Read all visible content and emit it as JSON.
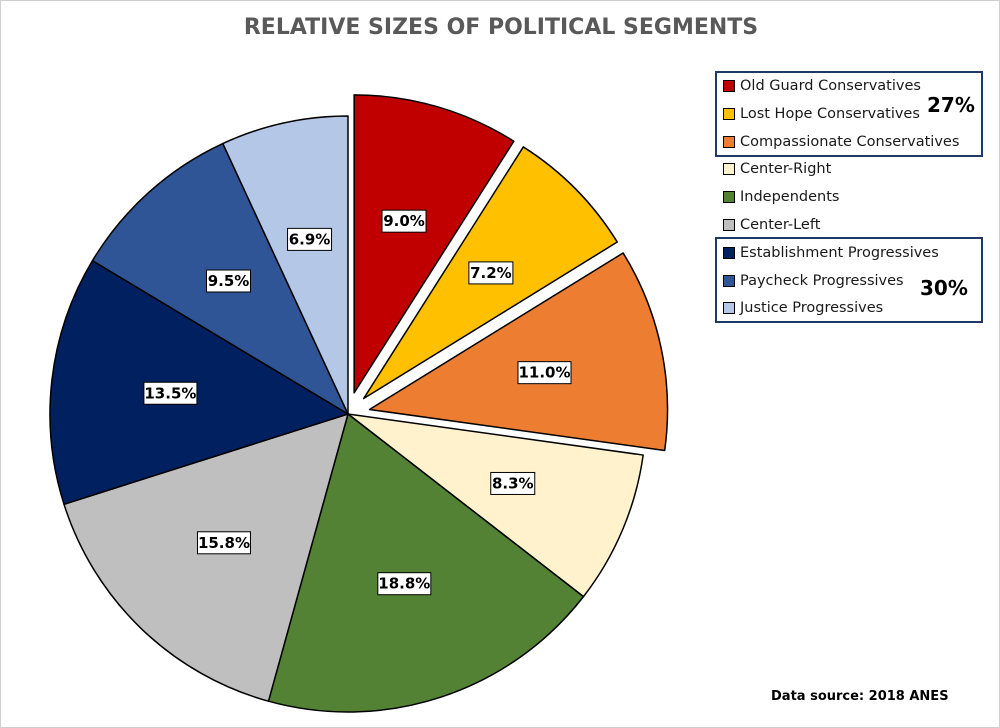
{
  "chart_data": {
    "type": "pie",
    "title": "RELATIVE SIZES OF POLITICAL SEGMENTS",
    "start_angle_deg": 0,
    "direction": "clockwise",
    "slices": [
      {
        "name": "Old Guard Conservatives",
        "value": 9.0,
        "label": "9.0%",
        "color": "#C00000",
        "exploded": true
      },
      {
        "name": "Lost Hope Conservatives",
        "value": 7.2,
        "label": "7.2%",
        "color": "#FFC000",
        "exploded": true
      },
      {
        "name": "Compassionate Conservatives",
        "value": 11.0,
        "label": "11.0%",
        "color": "#ED7D31",
        "exploded": true
      },
      {
        "name": "Center-Right",
        "value": 8.3,
        "label": "8.3%",
        "color": "#FFF2CC",
        "exploded": false
      },
      {
        "name": "Independents",
        "value": 18.8,
        "label": "18.8%",
        "color": "#548235",
        "exploded": false
      },
      {
        "name": "Center-Left",
        "value": 15.8,
        "label": "15.8%",
        "color": "#BFBFBF",
        "exploded": false
      },
      {
        "name": "Establishment Progressives",
        "value": 13.5,
        "label": "13.5%",
        "color": "#002060",
        "exploded": false
      },
      {
        "name": "Paycheck Progressives",
        "value": 9.5,
        "label": "9.5%",
        "color": "#2F5597",
        "exploded": false
      },
      {
        "name": "Justice Progressives",
        "value": 6.9,
        "label": "6.9%",
        "color": "#B4C7E7",
        "exploded": false
      }
    ],
    "groups": [
      {
        "members": [
          "Old Guard Conservatives",
          "Lost Hope Conservatives",
          "Compassionate Conservatives"
        ],
        "total_label": "27%"
      },
      {
        "members": [
          "Establishment Progressives",
          "Paycheck Progressives",
          "Justice Progressives"
        ],
        "total_label": "30%"
      }
    ],
    "legend_position": "right",
    "source_note": "Data source: 2018 ANES"
  }
}
